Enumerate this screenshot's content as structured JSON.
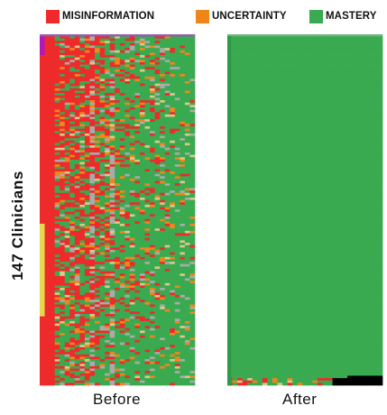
{
  "legend": {
    "misinformation": "MISINFORMATION",
    "uncertainty": "UNCERTAINTY",
    "mastery": "MASTERY"
  },
  "colors": {
    "misinformation": "#ee2a2a",
    "uncertainty": "#f0861a",
    "mastery": "#3aaa50",
    "no_response": "#aaaaaa",
    "partial": "#d9c98a",
    "unanswered": "#000000",
    "marker_top": "#b418b4",
    "marker_bottom": "#e7d84a"
  },
  "y_label": "147 Clinicians",
  "panels": {
    "before": "Before",
    "after": "After"
  },
  "chart_data": {
    "type": "heatmap",
    "rows": 147,
    "columns": 31,
    "y_label": "147 Clinicians",
    "categories": [
      "MISINFORMATION",
      "UNCERTAINTY",
      "MASTERY"
    ],
    "panels": [
      {
        "name": "Before",
        "approx_share": {
          "misinformation": 0.42,
          "uncertainty": 0.08,
          "mastery": 0.42,
          "no_response": 0.08
        }
      },
      {
        "name": "After",
        "approx_share": {
          "misinformation": 0.003,
          "uncertainty": 0.003,
          "mastery": 0.984,
          "unanswered": 0.01
        }
      }
    ]
  }
}
